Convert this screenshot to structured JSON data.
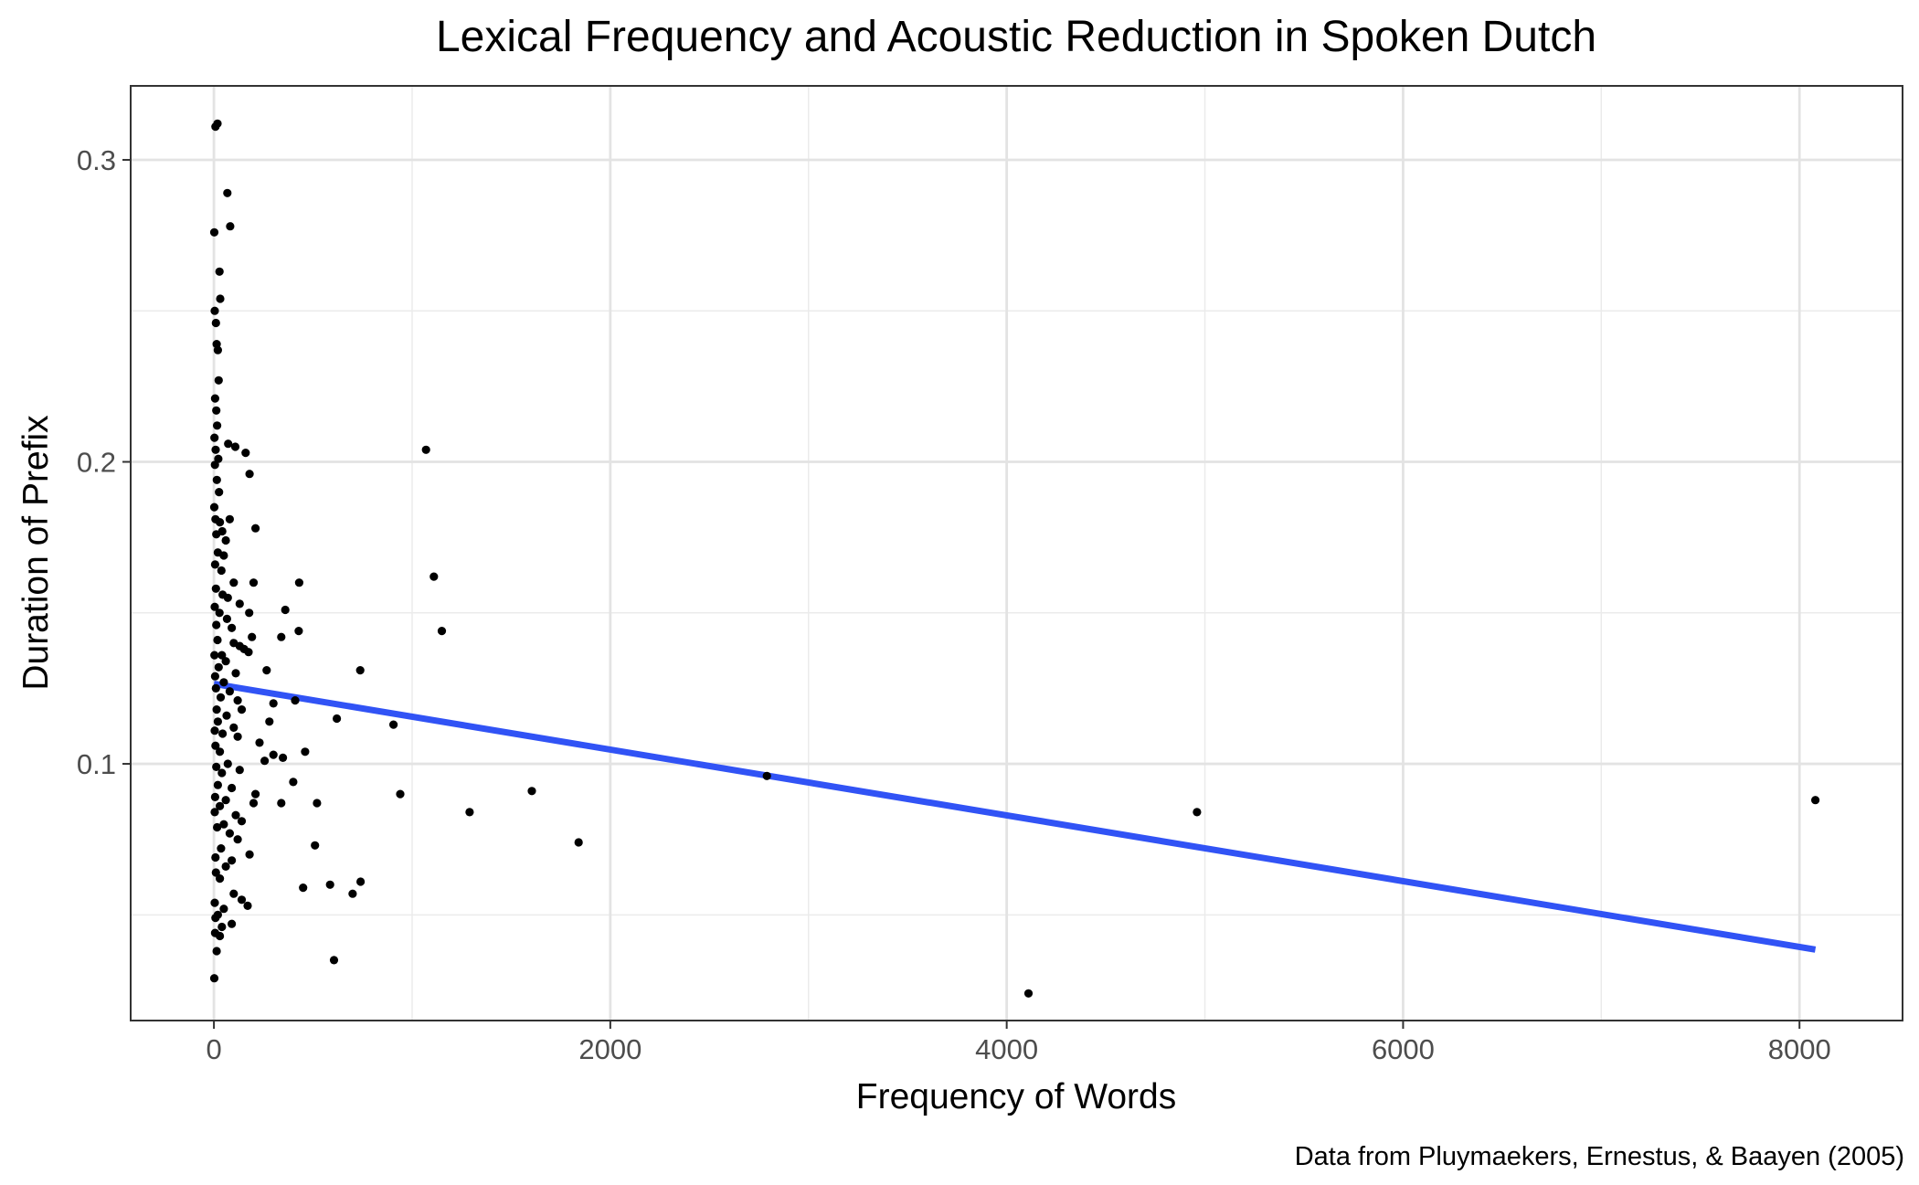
{
  "chart_data": {
    "type": "scatter",
    "title": "Lexical Frequency and Acoustic Reduction in Spoken Dutch",
    "xlabel": "Frequency of Words",
    "ylabel": "Duration of Prefix",
    "caption": "Data from Pluymaekers, Ernestus, & Baayen (2005)",
    "xlim": [
      -420,
      8520
    ],
    "ylim": [
      0.015,
      0.3245
    ],
    "x_ticks": [
      0,
      2000,
      4000,
      6000,
      8000
    ],
    "x_tick_labels": [
      "0",
      "2000",
      "4000",
      "6000",
      "8000"
    ],
    "x_minor_ticks": [
      1000,
      3000,
      5000,
      7000
    ],
    "y_ticks": [
      0.1,
      0.2,
      0.3
    ],
    "y_tick_labels": [
      "0.1",
      "0.2",
      "0.3"
    ],
    "y_minor_ticks": [
      0.05,
      0.15,
      0.25
    ],
    "grid": true,
    "point_color": "#000000",
    "line_color": "#3153f5",
    "points": [
      [
        8,
        0.311
      ],
      [
        18,
        0.312
      ],
      [
        2,
        0.276
      ],
      [
        68,
        0.289
      ],
      [
        82,
        0.278
      ],
      [
        28,
        0.263
      ],
      [
        32,
        0.254
      ],
      [
        4,
        0.25
      ],
      [
        10,
        0.246
      ],
      [
        14,
        0.239
      ],
      [
        20,
        0.237
      ],
      [
        24,
        0.227
      ],
      [
        6,
        0.221
      ],
      [
        12,
        0.217
      ],
      [
        16,
        0.212
      ],
      [
        3,
        0.208
      ],
      [
        9,
        0.204
      ],
      [
        22,
        0.201
      ],
      [
        72,
        0.206
      ],
      [
        108,
        0.205
      ],
      [
        160,
        0.203
      ],
      [
        180,
        0.196
      ],
      [
        5,
        0.199
      ],
      [
        15,
        0.194
      ],
      [
        26,
        0.19
      ],
      [
        1070,
        0.204
      ],
      [
        2,
        0.185
      ],
      [
        8,
        0.181
      ],
      [
        30,
        0.18
      ],
      [
        80,
        0.181
      ],
      [
        210,
        0.178
      ],
      [
        12,
        0.176
      ],
      [
        42,
        0.177
      ],
      [
        60,
        0.174
      ],
      [
        20,
        0.17
      ],
      [
        50,
        0.169
      ],
      [
        6,
        0.166
      ],
      [
        38,
        0.164
      ],
      [
        100,
        0.16
      ],
      [
        200,
        0.16
      ],
      [
        430,
        0.16
      ],
      [
        1110,
        0.162
      ],
      [
        10,
        0.158
      ],
      [
        44,
        0.156
      ],
      [
        70,
        0.155
      ],
      [
        130,
        0.153
      ],
      [
        4,
        0.152
      ],
      [
        28,
        0.15
      ],
      [
        360,
        0.151
      ],
      [
        178,
        0.15
      ],
      [
        66,
        0.148
      ],
      [
        12,
        0.146
      ],
      [
        90,
        0.145
      ],
      [
        428,
        0.144
      ],
      [
        1150,
        0.144
      ],
      [
        340,
        0.142
      ],
      [
        192,
        0.142
      ],
      [
        18,
        0.141
      ],
      [
        100,
        0.14
      ],
      [
        130,
        0.139
      ],
      [
        152,
        0.138
      ],
      [
        175,
        0.137
      ],
      [
        3,
        0.136
      ],
      [
        40,
        0.136
      ],
      [
        60,
        0.134
      ],
      [
        24,
        0.132
      ],
      [
        266,
        0.131
      ],
      [
        738,
        0.131
      ],
      [
        110,
        0.13
      ],
      [
        6,
        0.129
      ],
      [
        50,
        0.127
      ],
      [
        10,
        0.125
      ],
      [
        80,
        0.124
      ],
      [
        34,
        0.122
      ],
      [
        120,
        0.121
      ],
      [
        300,
        0.12
      ],
      [
        410,
        0.121
      ],
      [
        14,
        0.118
      ],
      [
        140,
        0.118
      ],
      [
        64,
        0.116
      ],
      [
        620,
        0.115
      ],
      [
        280,
        0.114
      ],
      [
        20,
        0.114
      ],
      [
        906,
        0.113
      ],
      [
        100,
        0.112
      ],
      [
        4,
        0.111
      ],
      [
        44,
        0.11
      ],
      [
        120,
        0.109
      ],
      [
        230,
        0.107
      ],
      [
        8,
        0.106
      ],
      [
        460,
        0.104
      ],
      [
        30,
        0.104
      ],
      [
        300,
        0.103
      ],
      [
        348,
        0.102
      ],
      [
        256,
        0.101
      ],
      [
        70,
        0.1
      ],
      [
        12,
        0.099
      ],
      [
        130,
        0.098
      ],
      [
        40,
        0.097
      ],
      [
        2790,
        0.096
      ],
      [
        400,
        0.094
      ],
      [
        20,
        0.093
      ],
      [
        90,
        0.092
      ],
      [
        1604,
        0.091
      ],
      [
        210,
        0.09
      ],
      [
        940,
        0.09
      ],
      [
        6,
        0.089
      ],
      [
        60,
        0.088
      ],
      [
        520,
        0.087
      ],
      [
        340,
        0.087
      ],
      [
        8080,
        0.088
      ],
      [
        200,
        0.087
      ],
      [
        30,
        0.086
      ],
      [
        1290,
        0.084
      ],
      [
        4960,
        0.084
      ],
      [
        4,
        0.084
      ],
      [
        110,
        0.083
      ],
      [
        140,
        0.081
      ],
      [
        50,
        0.08
      ],
      [
        16,
        0.079
      ],
      [
        80,
        0.077
      ],
      [
        1840,
        0.074
      ],
      [
        120,
        0.075
      ],
      [
        510,
        0.073
      ],
      [
        36,
        0.072
      ],
      [
        180,
        0.07
      ],
      [
        8,
        0.069
      ],
      [
        90,
        0.068
      ],
      [
        60,
        0.066
      ],
      [
        10,
        0.064
      ],
      [
        30,
        0.062
      ],
      [
        740,
        0.061
      ],
      [
        586,
        0.06
      ],
      [
        450,
        0.059
      ],
      [
        100,
        0.057
      ],
      [
        700,
        0.057
      ],
      [
        140,
        0.055
      ],
      [
        4,
        0.054
      ],
      [
        170,
        0.053
      ],
      [
        50,
        0.052
      ],
      [
        20,
        0.05
      ],
      [
        8,
        0.049
      ],
      [
        90,
        0.047
      ],
      [
        40,
        0.046
      ],
      [
        6,
        0.044
      ],
      [
        30,
        0.043
      ],
      [
        14,
        0.038
      ],
      [
        606,
        0.035
      ],
      [
        2,
        0.029
      ],
      [
        4110,
        0.024
      ]
    ],
    "trend_line": {
      "x": [
        0,
        8080
      ],
      "y": [
        0.1265,
        0.0385
      ]
    }
  }
}
